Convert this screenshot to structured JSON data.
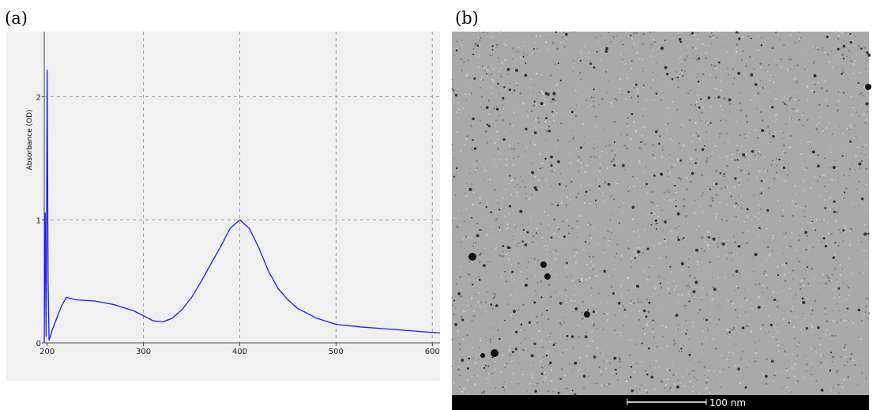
{
  "panel_labels": [
    "(a)",
    "(b)"
  ],
  "chart_data": {
    "type": "line",
    "y_label": "Absorbance (OD)",
    "x": [
      197,
      198,
      199,
      200,
      201,
      202,
      205,
      210,
      215,
      220,
      230,
      250,
      270,
      290,
      300,
      310,
      320,
      330,
      340,
      350,
      360,
      370,
      380,
      390,
      400,
      410,
      420,
      430,
      440,
      450,
      460,
      480,
      500,
      525,
      550,
      575,
      600,
      608
    ],
    "series": [
      {
        "color": "#1a1aff",
        "values": [
          0,
          1.06,
          0.05,
          2.22,
          0.5,
          0.02,
          0.1,
          0.2,
          0.3,
          0.37,
          0.35,
          0.34,
          0.31,
          0.26,
          0.22,
          0.18,
          0.17,
          0.2,
          0.27,
          0.37,
          0.5,
          0.64,
          0.78,
          0.93,
          1.0,
          0.93,
          0.77,
          0.58,
          0.44,
          0.35,
          0.28,
          0.2,
          0.15,
          0.13,
          0.115,
          0.1,
          0.085,
          0.08
        ]
      }
    ],
    "xlim": [
      197,
      608
    ],
    "xticks": [
      200,
      300,
      400,
      500,
      600
    ],
    "ylim": [
      0,
      2.53
    ],
    "yticks": [
      0,
      1,
      2
    ],
    "grid": true
  },
  "image": {
    "scale_bar": "100 nm"
  }
}
